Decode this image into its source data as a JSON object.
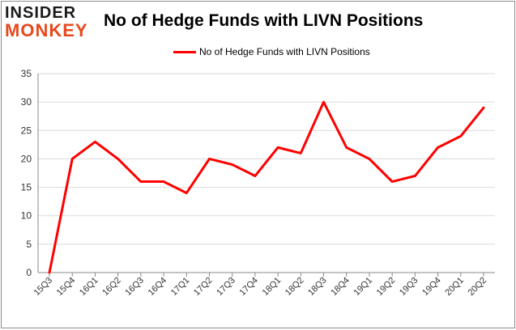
{
  "logo": {
    "line1": "INSIDER",
    "line2": "MONKEY"
  },
  "colors": {
    "series": "#ff0000",
    "grid": "#d9d9d9",
    "axis": "#888888",
    "frame": "#8c8c8c"
  },
  "chart_data": {
    "type": "line",
    "title": "No of Hedge Funds with LIVN Positions",
    "xlabel": "",
    "ylabel": "",
    "legend_position": "top-center",
    "grid": true,
    "ylim": [
      0,
      35
    ],
    "yticks": [
      0,
      5,
      10,
      15,
      20,
      25,
      30,
      35
    ],
    "x": [
      "15Q3",
      "15Q4",
      "16Q1",
      "16Q2",
      "16Q3",
      "16Q4",
      "17Q1",
      "17Q2",
      "17Q3",
      "17Q4",
      "18Q1",
      "18Q2",
      "18Q3",
      "18Q4",
      "19Q1",
      "19Q2",
      "19Q3",
      "19Q4",
      "20Q1",
      "20Q2"
    ],
    "series": [
      {
        "name": "No of Hedge Funds with LIVN Positions",
        "values": [
          0,
          20,
          23,
          20,
          16,
          16,
          14,
          20,
          19,
          17,
          22,
          21,
          30,
          22,
          20,
          16,
          17,
          22,
          24,
          29
        ]
      }
    ]
  }
}
